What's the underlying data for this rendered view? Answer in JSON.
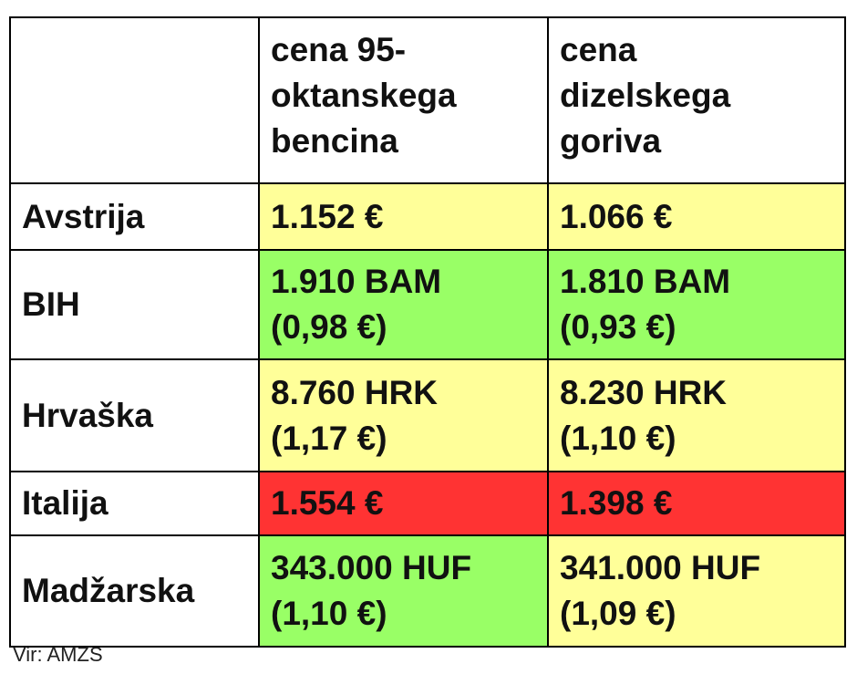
{
  "headers": [
    "",
    "cena 95-\noktanskega\nbencina",
    "cena\ndizelskega\ngoriva"
  ],
  "rows": [
    {
      "country": "Avstrija",
      "petrol": "1.152 €",
      "diesel": "1.066 €",
      "petrol_color": "yellow",
      "diesel_color": "yellow"
    },
    {
      "country": "BIH",
      "petrol": "1.910 BAM\n(0,98 €)",
      "diesel": "1.810 BAM\n(0,93 €)",
      "petrol_color": "green",
      "diesel_color": "green"
    },
    {
      "country": "Hrvaška",
      "petrol": "8.760 HRK\n(1,17 €)",
      "diesel": "8.230 HRK\n(1,10 €)",
      "petrol_color": "yellow",
      "diesel_color": "yellow"
    },
    {
      "country": "Italija",
      "petrol": "1.554 €",
      "diesel": "1.398 €",
      "petrol_color": "red",
      "diesel_color": "red"
    },
    {
      "country": "Madžarska",
      "petrol": "343.000 HUF\n(1,10 €)",
      "diesel": "341.000 HUF\n(1,09 €)",
      "petrol_color": "green",
      "diesel_color": "yellow"
    }
  ],
  "colors": {
    "yellow": "#ffff99",
    "green": "#99ff66",
    "red": "#ff3333"
  },
  "source": "Vir: AMZS"
}
